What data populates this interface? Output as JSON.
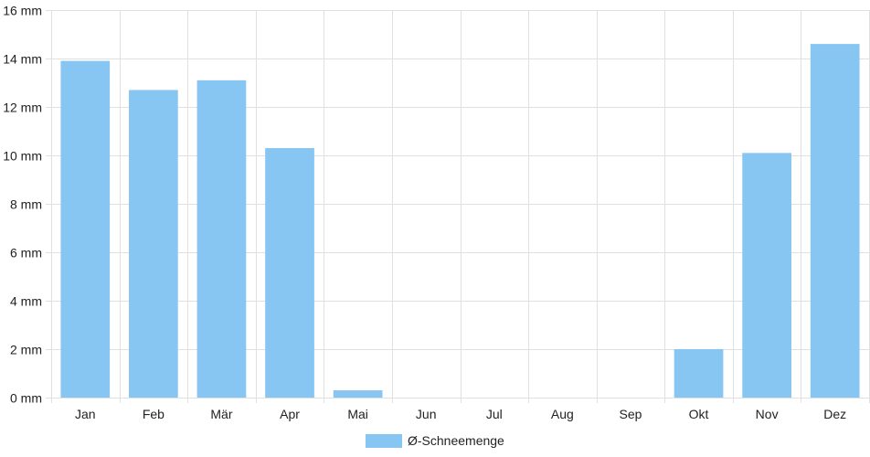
{
  "chart_data": {
    "type": "bar",
    "categories": [
      "Jan",
      "Feb",
      "Mär",
      "Apr",
      "Mai",
      "Jun",
      "Jul",
      "Aug",
      "Sep",
      "Okt",
      "Nov",
      "Dez"
    ],
    "series": [
      {
        "name": "Ø-Schneemenge",
        "color": "#87c6f2",
        "values": [
          13.9,
          12.7,
          13.1,
          10.3,
          0.3,
          0,
          0,
          0,
          0,
          2.0,
          10.1,
          14.6
        ]
      }
    ],
    "ylim": [
      0,
      16
    ],
    "yticks": [
      0,
      2,
      4,
      6,
      8,
      10,
      12,
      14,
      16
    ],
    "ytick_unit": "mm",
    "ytick_labels": [
      "0 mm",
      "2 mm",
      "4 mm",
      "6 mm",
      "8 mm",
      "10 mm",
      "12 mm",
      "14 mm",
      "16 mm"
    ],
    "grid": true,
    "grid_color": "#e0e0e0",
    "legend_position": "bottom-center"
  }
}
